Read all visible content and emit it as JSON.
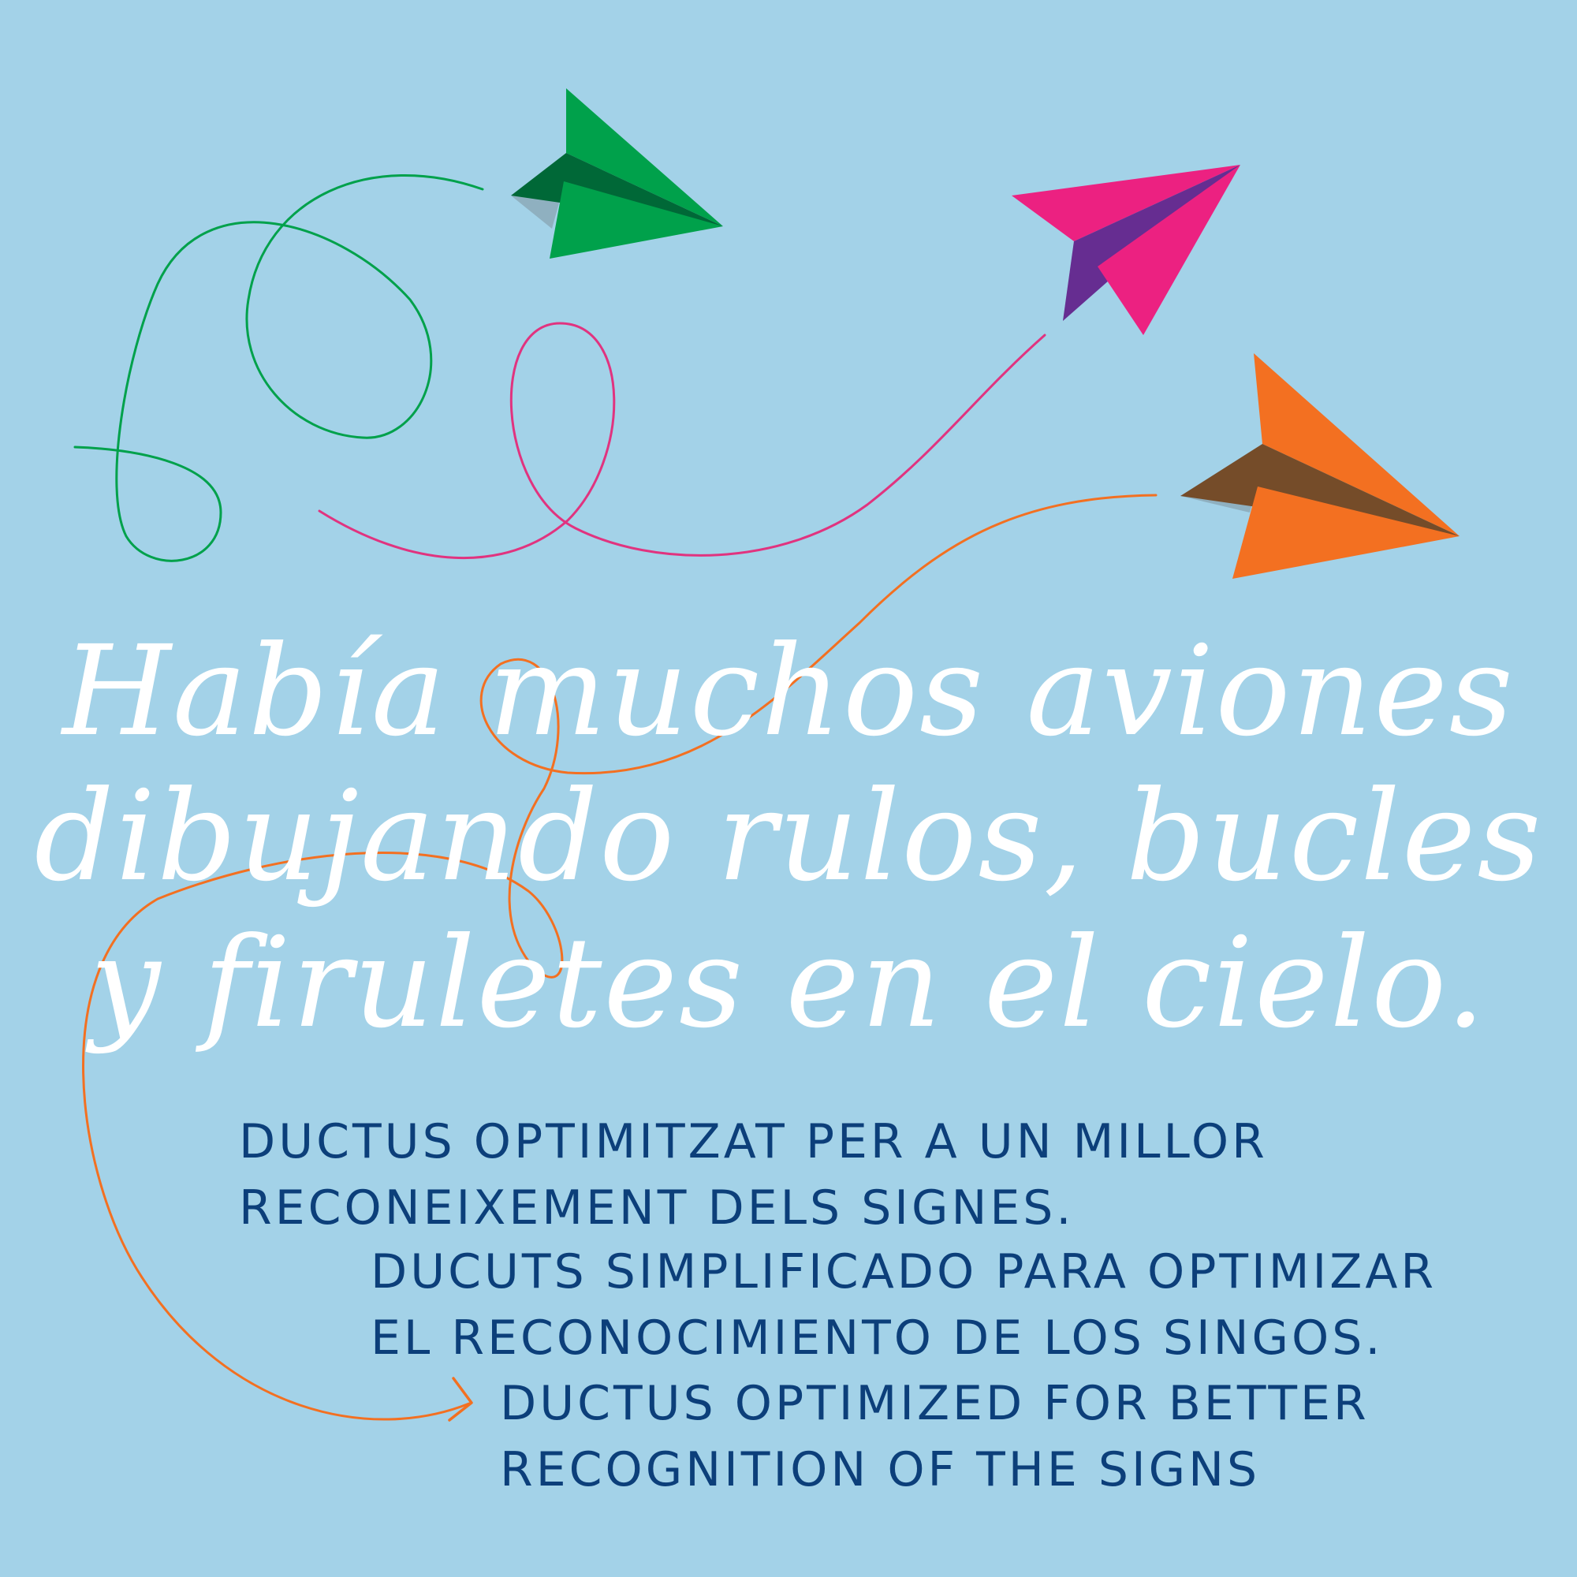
{
  "colors": {
    "background": "#a3d2e8",
    "script_text": "#ffffff",
    "caption_text": "#0c3f7a",
    "green_plane": "#00a14b",
    "green_plane_fold": "#006837",
    "pink_plane": "#ec2181",
    "pink_plane_fold": "#662d91",
    "orange_plane": "#f37021",
    "orange_plane_fold": "#754c29",
    "plane_shadow": "#8fb0c0"
  },
  "illustration": {
    "icons": [
      "green-paper-plane-icon",
      "pink-paper-plane-icon",
      "orange-paper-plane-icon",
      "arrowhead-icon"
    ]
  },
  "script_text": {
    "line1": "Había muchos aviones",
    "line2": "dibujando rulos, bucles",
    "line3": "y firuletes en el cielo."
  },
  "captions": {
    "catalan": {
      "line1": "DUCTUS OPTIMITZAT PER A UN MILLOR",
      "line2": "RECONEIXEMENT DELS SIGNES."
    },
    "spanish": {
      "line1": "DUCUTS SIMPLIFICADO PARA OPTIMIZAR",
      "line2": "EL RECONOCIMIENTO DE LOS SINGOS."
    },
    "english": {
      "line1": "DUCTUS OPTIMIZED FOR BETTER",
      "line2": "RECOGNITION OF THE SIGNS"
    }
  }
}
